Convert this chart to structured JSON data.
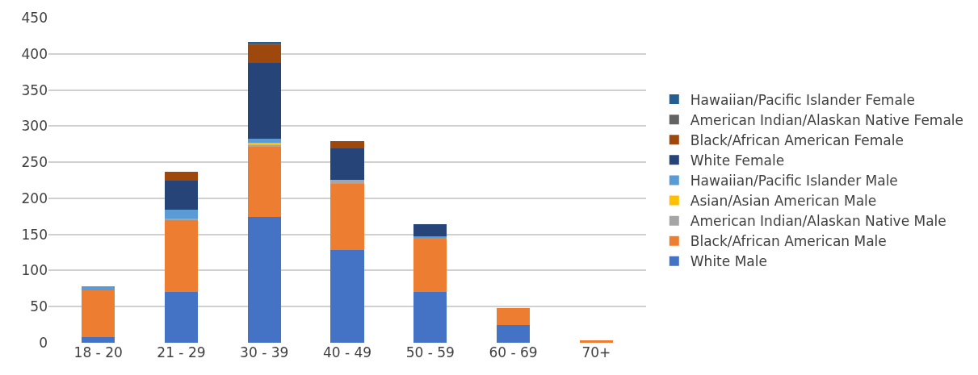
{
  "chart_data": {
    "type": "bar",
    "stacked": true,
    "categories": [
      "18 - 20",
      "21 - 29",
      "30 - 39",
      "40 - 49",
      "50 - 59",
      "60 - 69",
      "70+"
    ],
    "series": [
      {
        "name": "White Male",
        "color": "#4472c4",
        "values": [
          8,
          70,
          174,
          128,
          70,
          25,
          0
        ]
      },
      {
        "name": "Black/African American Male",
        "color": "#ed7d31",
        "values": [
          65,
          100,
          98,
          92,
          76,
          23,
          3
        ]
      },
      {
        "name": "American Indian/Alaskan Native Male",
        "color": "#a5a5a5",
        "values": [
          0,
          2,
          2,
          6,
          0,
          0,
          0
        ]
      },
      {
        "name": "Asian/Asian American Male",
        "color": "#ffc000",
        "values": [
          0,
          0,
          3,
          0,
          0,
          0,
          0
        ]
      },
      {
        "name": "Hawaiian/Pacific Islander Male",
        "color": "#5b9bd5",
        "values": [
          5,
          12,
          6,
          0,
          1,
          0,
          0
        ]
      },
      {
        "name": "White Female",
        "color": "#264478",
        "values": [
          0,
          40,
          105,
          43,
          17,
          0,
          0
        ]
      },
      {
        "name": "Black/African American Female",
        "color": "#9e480e",
        "values": [
          0,
          13,
          24,
          10,
          0,
          0,
          0
        ]
      },
      {
        "name": "American Indian/Alaskan Native Female",
        "color": "#636363",
        "values": [
          0,
          0,
          3,
          0,
          0,
          0,
          0
        ]
      },
      {
        "name": "Hawaiian/Pacific Islander Female",
        "color": "#255e91",
        "values": [
          0,
          0,
          2,
          0,
          0,
          0,
          0
        ]
      }
    ],
    "ylim": [
      0,
      450
    ],
    "yticks": [
      0,
      50,
      100,
      150,
      200,
      250,
      300,
      350,
      400,
      450
    ],
    "grid": "y",
    "legend": "right"
  }
}
